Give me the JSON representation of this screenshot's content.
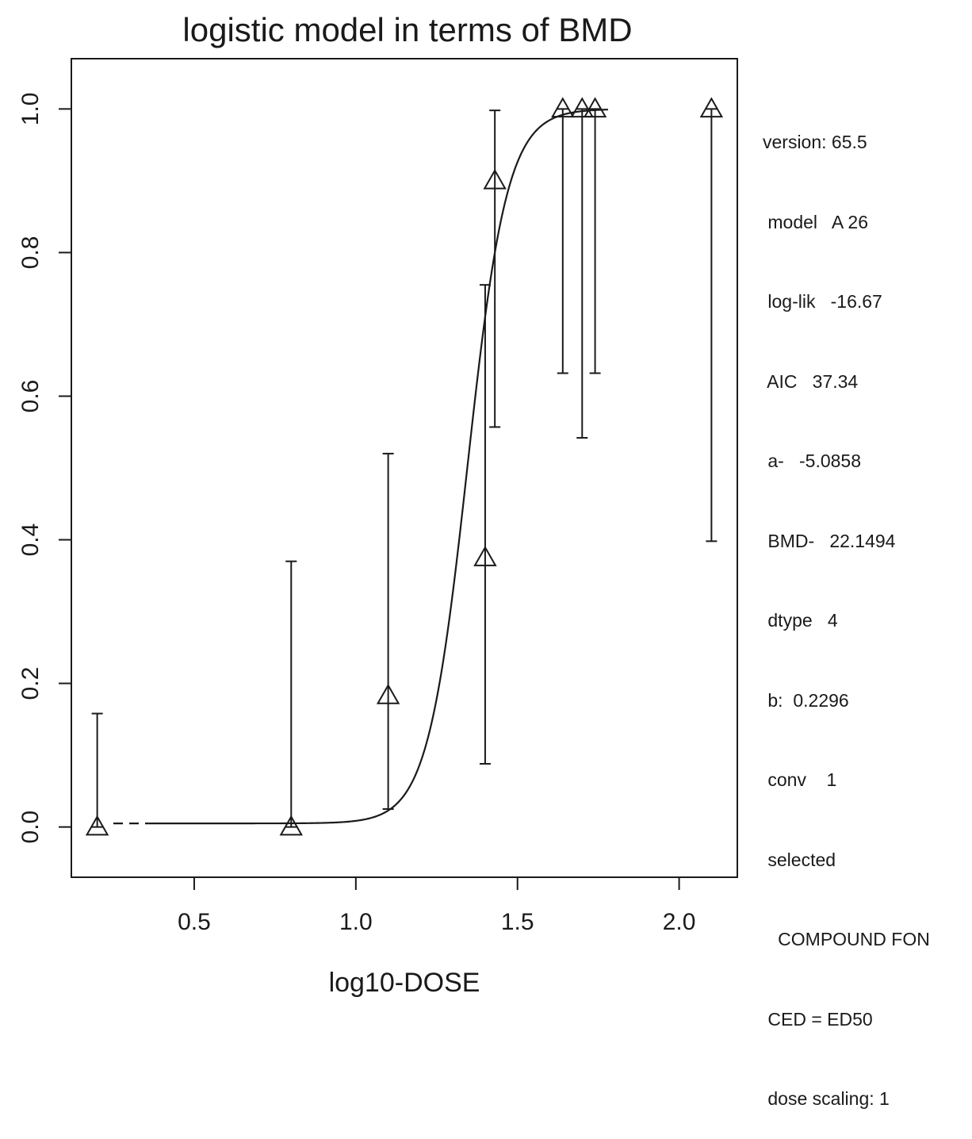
{
  "chart_data": {
    "type": "scatter",
    "title": "logistic model in terms of BMD",
    "xlabel": "log10-DOSE",
    "ylabel": "",
    "xlim": [
      0.12,
      2.18
    ],
    "ylim": [
      -0.07,
      1.07
    ],
    "xticks": [
      0.5,
      1.0,
      1.5,
      2.0
    ],
    "xtick_labels": [
      "0.5",
      "1.0",
      "1.5",
      "2.0"
    ],
    "yticks": [
      0.0,
      0.2,
      0.4,
      0.6,
      0.8,
      1.0
    ],
    "ytick_labels": [
      "0.0",
      "0.2",
      "0.4",
      "0.6",
      "0.8",
      "1.0"
    ],
    "grid": false,
    "series": [
      {
        "marker": "triangle",
        "points": [
          {
            "x": 0.2,
            "y": 0.0,
            "lo": 0.0,
            "hi": 0.158
          },
          {
            "x": 0.8,
            "y": 0.0,
            "lo": 0.0,
            "hi": 0.37
          },
          {
            "x": 1.1,
            "y": 0.183,
            "lo": 0.025,
            "hi": 0.52
          },
          {
            "x": 1.4,
            "y": 0.375,
            "lo": 0.088,
            "hi": 0.755
          },
          {
            "x": 1.43,
            "y": 0.9,
            "lo": 0.557,
            "hi": 0.998
          },
          {
            "x": 1.64,
            "y": 1.0,
            "lo": 0.632,
            "hi": 1.0
          },
          {
            "x": 1.7,
            "y": 1.0,
            "lo": 0.542,
            "hi": 1.0
          },
          {
            "x": 1.74,
            "y": 1.0,
            "lo": 0.632,
            "hi": 1.0
          },
          {
            "x": 2.1,
            "y": 1.0,
            "lo": 0.398,
            "hi": 1.0
          }
        ]
      }
    ],
    "fit_curve": {
      "model": "logistic",
      "midpoint_log10": 1.3453,
      "slope": 16.3,
      "lower": 0.005,
      "x_solid_from": 0.36,
      "x_from": 0.25,
      "x_to": 1.78
    }
  },
  "info_panel": [
    "version: 65.5",
    " model   A 26",
    " log-lik   -16.67",
    " AIC   37.34",
    " a-   -5.0858",
    " BMD-   22.1494",
    " dtype   4",
    " b:  0.2296",
    " conv    1",
    " selected",
    "   COMPOUND FON",
    " CED = ED50",
    " dose scaling: 1"
  ]
}
